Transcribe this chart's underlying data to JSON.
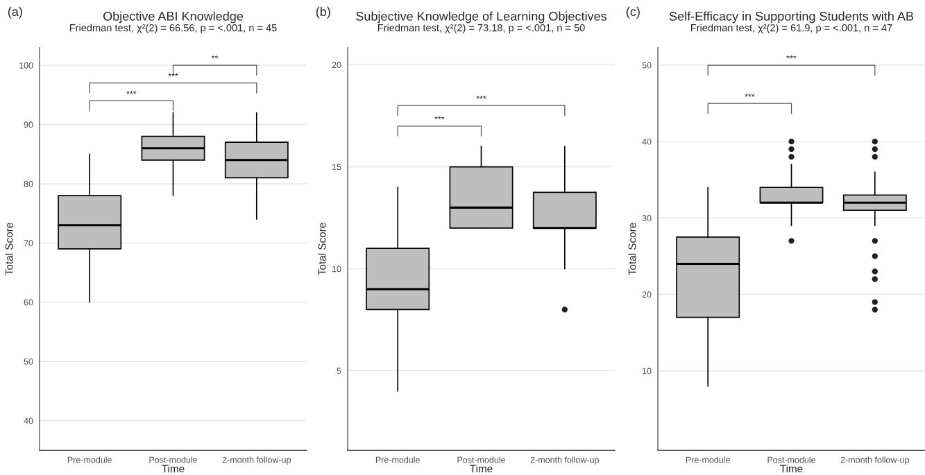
{
  "chart_data": [
    {
      "type": "box",
      "title": "Objective ABI Knowledge",
      "subtitle": "Friedman test, χ²(2) = 66.56, p = <.001, n = 45",
      "xlabel": "Time",
      "ylabel": "Total Score",
      "categories": [
        "Pre-module",
        "Post-module",
        "2-month follow-up"
      ],
      "boxes": [
        {
          "low": 60,
          "q1": 69,
          "median": 73,
          "q3": 78,
          "high": 85
        },
        {
          "low": 78,
          "q1": 84,
          "median": 86,
          "q3": 88,
          "high": 92
        },
        {
          "low": 74,
          "q1": 81,
          "median": 84,
          "q3": 87,
          "high": 92
        }
      ],
      "color": "#bebebe",
      "ylim": [
        35,
        103
      ],
      "yticks": [
        40,
        50,
        60,
        70,
        80,
        90,
        100
      ],
      "grid": "y",
      "annotations": [
        "(a)",
        "***",
        "***",
        "**"
      ]
    },
    {
      "type": "box",
      "title": "Subjective Knowledge of Learning Objectives",
      "subtitle": "Friedman test, χ²(2) = 73.18, p = <.001, n = 50",
      "xlabel": "Time",
      "ylabel": "Total Score",
      "categories": [
        "Pre-module",
        "Post-module",
        "2-month follow-up"
      ],
      "boxes": [
        {
          "low": 4,
          "q1": 8,
          "median": 9,
          "q3": 11,
          "high": 14
        },
        {
          "low": 12,
          "q1": 12,
          "median": 13,
          "q3": 15,
          "high": 16
        },
        {
          "low": 10,
          "q1": 12,
          "median": 12,
          "q3": 13.75,
          "high": 16,
          "outliers": [
            8
          ]
        }
      ],
      "color": "#bebebe",
      "ylim": [
        1.1,
        20.85
      ],
      "yticks": [
        5,
        10,
        15,
        20
      ],
      "grid": "y",
      "annotations": [
        "(b)",
        "***",
        "***"
      ]
    },
    {
      "type": "box",
      "title": "Self-Efficacy in Supporting Students with AB",
      "subtitle": "Friedman test, χ²(2) = 61.9, p = <.001, n = 47",
      "xlabel": "Time",
      "ylabel": "Total Score",
      "categories": [
        "Pre-module",
        "Post-module",
        "2-month follow-up"
      ],
      "boxes": [
        {
          "low": 8,
          "q1": 17,
          "median": 24,
          "q3": 27.5,
          "high": 34
        },
        {
          "low": 29,
          "q1": 32,
          "median": 32,
          "q3": 34,
          "high": 37,
          "outliers": [
            27,
            38,
            39,
            40
          ]
        },
        {
          "low": 29,
          "q1": 31,
          "median": 32,
          "q3": 33,
          "high": 36,
          "outliers": [
            18,
            19,
            22,
            23,
            25,
            27,
            38,
            39,
            40
          ]
        }
      ],
      "color": "#bebebe",
      "ylim": [
        -0.4,
        52.3
      ],
      "yticks": [
        10,
        20,
        30,
        40,
        50
      ],
      "grid": "y",
      "annotations": [
        "(c)",
        "***",
        "***"
      ]
    }
  ]
}
